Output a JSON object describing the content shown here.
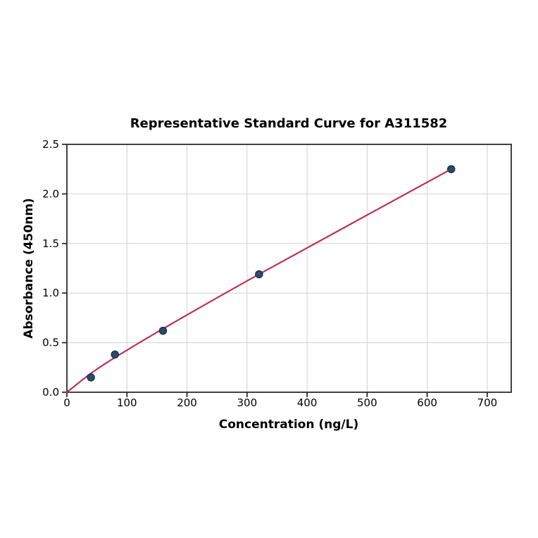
{
  "figure": {
    "background": "#ffffff"
  },
  "chart_data": {
    "type": "scatter",
    "title": "Representative Standard Curve for A311582",
    "xlabel": "Concentration (ng/L)",
    "ylabel": "Absorbance (450nm)",
    "xlim": [
      0,
      740
    ],
    "ylim": [
      0,
      2.5
    ],
    "xticks": [
      0,
      100,
      200,
      300,
      400,
      500,
      600,
      700
    ],
    "xtick_labels": [
      "0",
      "100",
      "200",
      "300",
      "400",
      "500",
      "600",
      "700"
    ],
    "yticks": [
      0.0,
      0.5,
      1.0,
      1.5,
      2.0,
      2.5
    ],
    "ytick_labels": [
      "0.0",
      "0.5",
      "1.0",
      "1.5",
      "2.0",
      "2.5"
    ],
    "grid": true,
    "legend": "none",
    "points": [
      {
        "x": 40,
        "y": 0.15
      },
      {
        "x": 80,
        "y": 0.38
      },
      {
        "x": 160,
        "y": 0.62
      },
      {
        "x": 320,
        "y": 1.19
      },
      {
        "x": 640,
        "y": 2.25
      }
    ],
    "fit_line": [
      {
        "x": 0,
        "y": 0.0
      },
      {
        "x": 40,
        "y": 0.19
      },
      {
        "x": 80,
        "y": 0.35
      },
      {
        "x": 160,
        "y": 0.64
      },
      {
        "x": 320,
        "y": 1.19
      },
      {
        "x": 640,
        "y": 2.25
      }
    ],
    "colors": {
      "line": "#bf3056",
      "marker": "#2d4b6e",
      "marker_edge": "#1b3048",
      "grid": "#d2d2d2",
      "spine": "#2b2b2b",
      "text": "#000000",
      "background": "#ffffff"
    }
  }
}
